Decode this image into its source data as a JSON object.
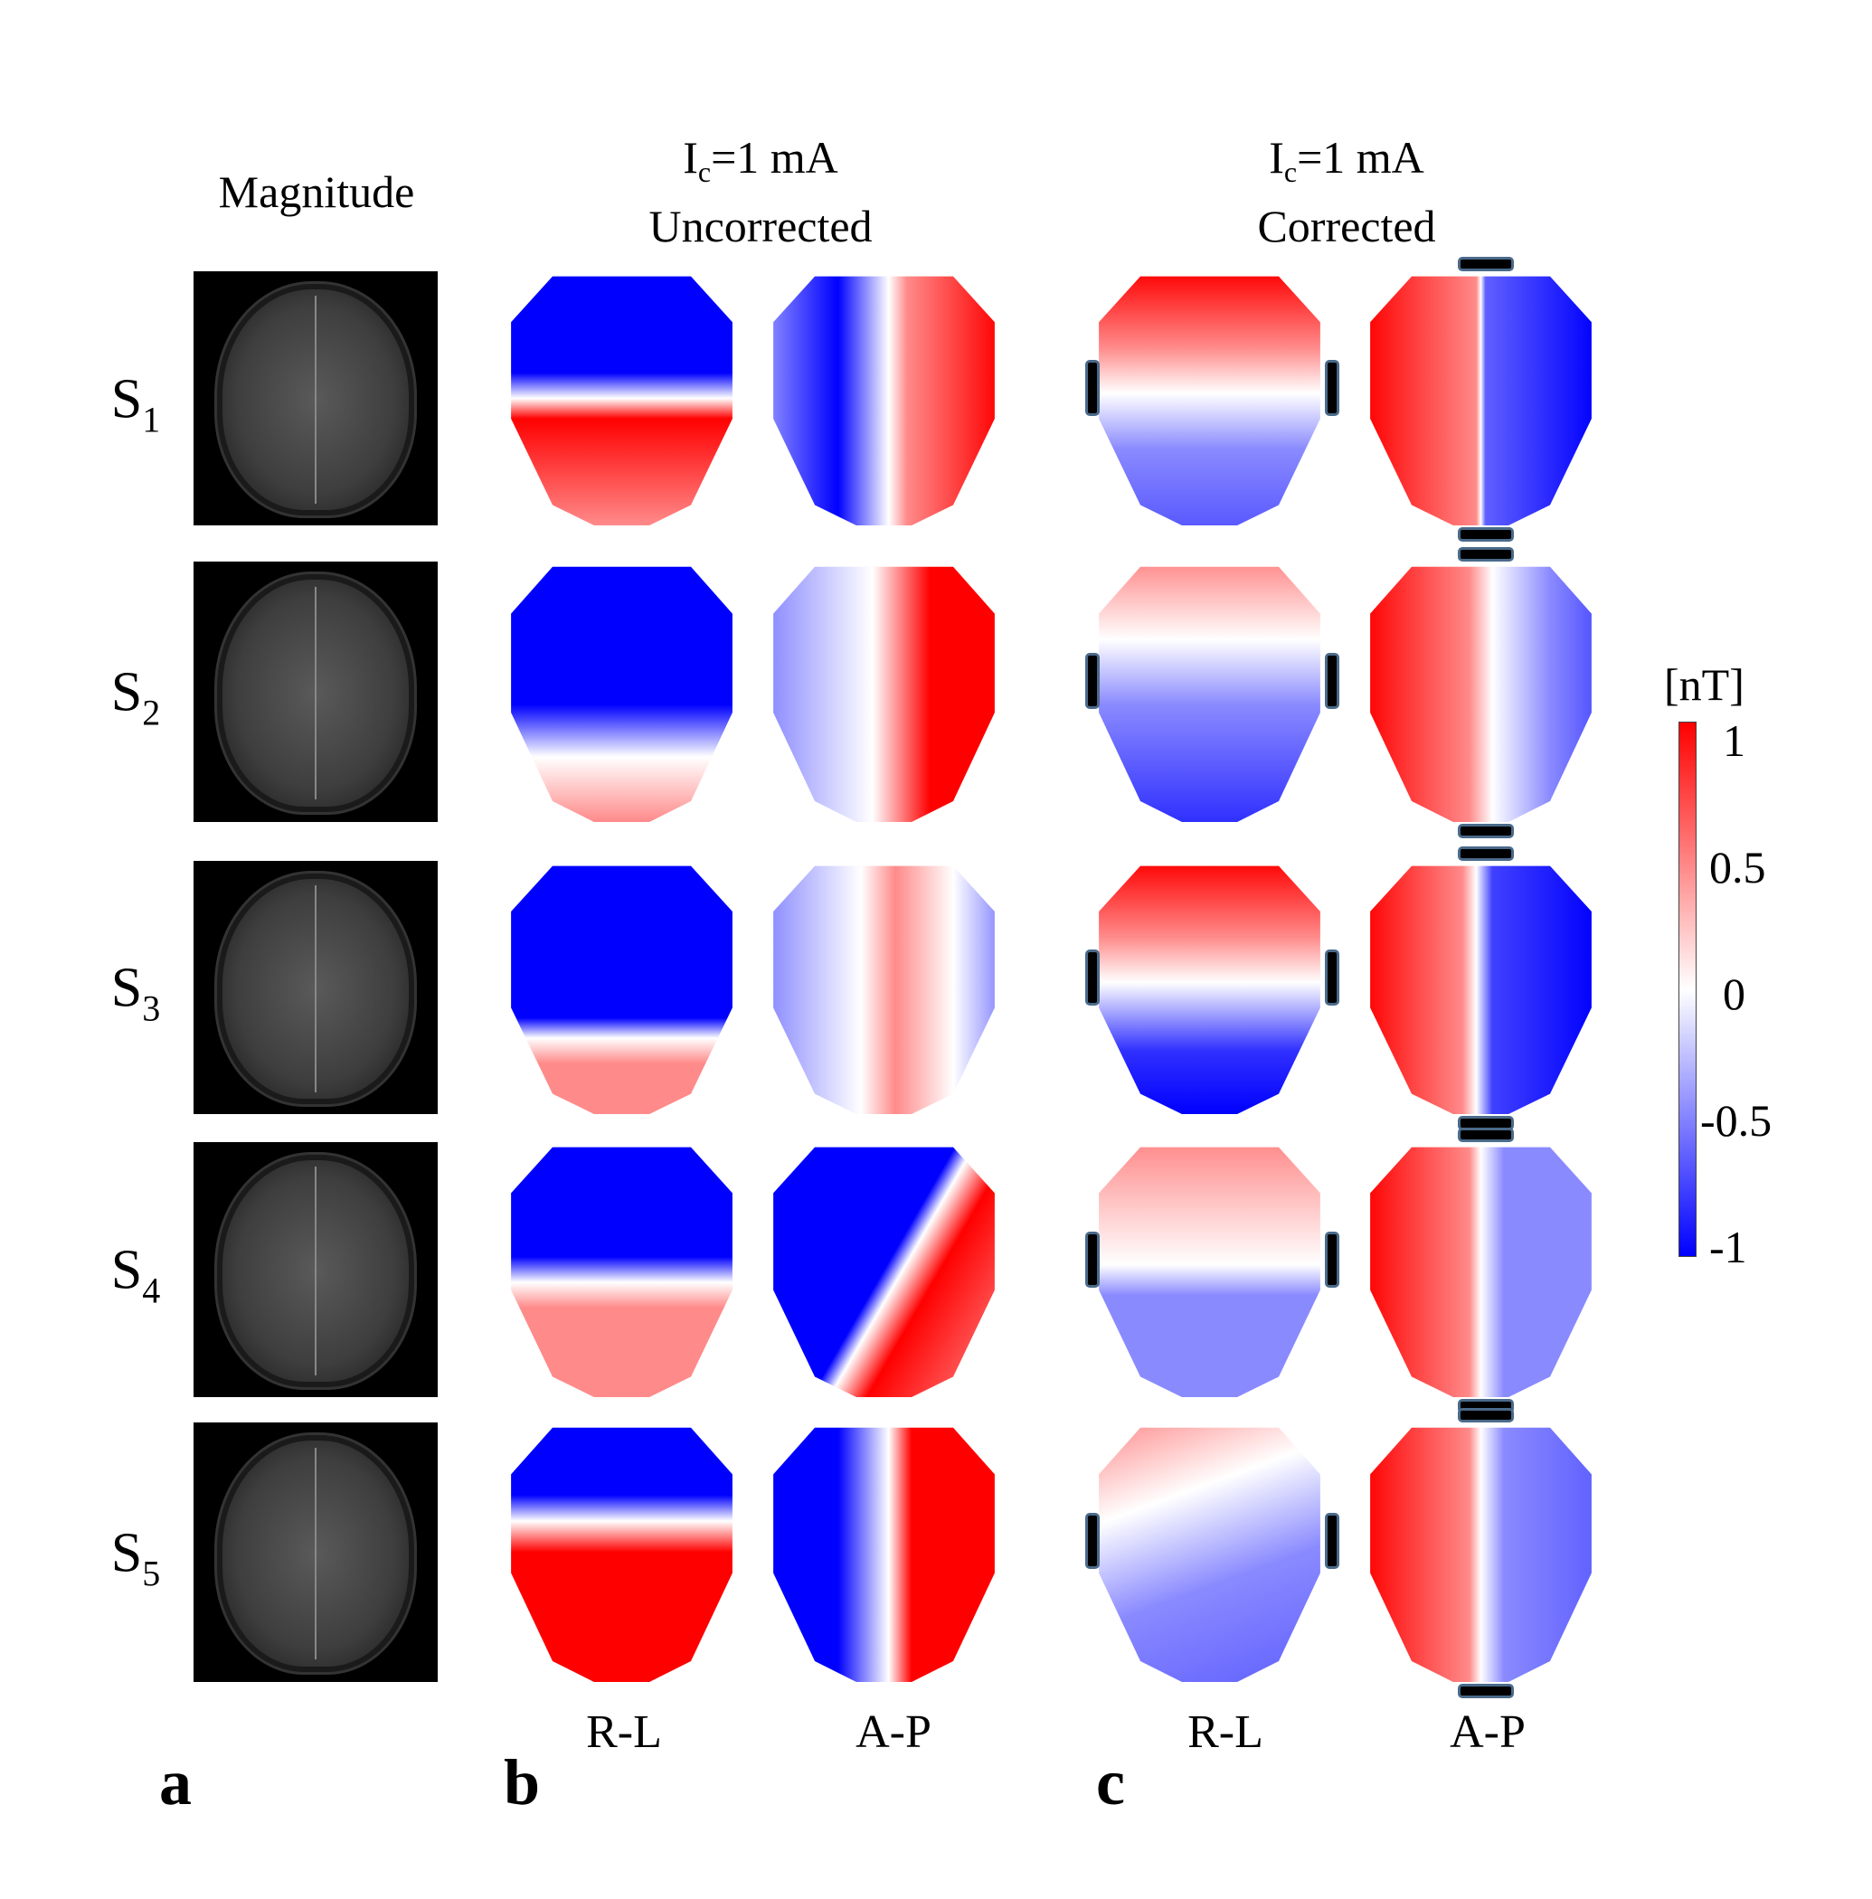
{
  "headers": {
    "magnitude": "Magnitude",
    "uncorrected": {
      "current_prefix": "I",
      "current_sub": "c",
      "current_value": "=1 mA",
      "label": "Uncorrected"
    },
    "corrected": {
      "current_prefix": "I",
      "current_sub": "c",
      "current_value": "=1 mA",
      "label": "Corrected"
    }
  },
  "rows": [
    {
      "label": "S",
      "sub": "1"
    },
    {
      "label": "S",
      "sub": "2"
    },
    {
      "label": "S",
      "sub": "3"
    },
    {
      "label": "S",
      "sub": "4"
    },
    {
      "label": "S",
      "sub": "5"
    }
  ],
  "bottom_labels": [
    "R-L",
    "A-P",
    "R-L",
    "A-P"
  ],
  "panel_letters": [
    "a",
    "b",
    "c"
  ],
  "colorbar": {
    "unit": "[nT]",
    "ticks": [
      "1",
      "0.5",
      "0",
      "-0.5",
      "-1"
    ],
    "colors": {
      "max": "#ff0000",
      "mid": "#ffffff",
      "min": "#0000ff"
    }
  }
}
